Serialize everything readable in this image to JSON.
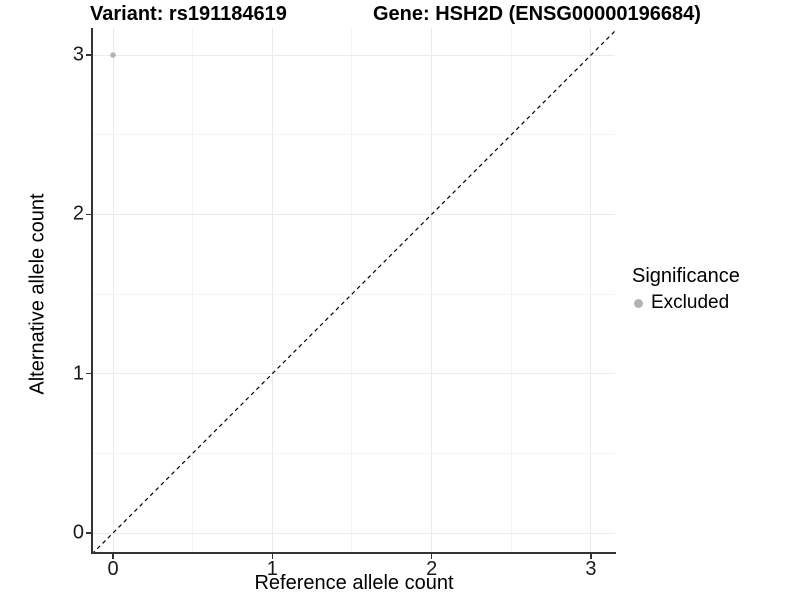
{
  "header": {
    "variant_title": "Variant: rs191184619",
    "gene_title": "Gene: HSH2D (ENSG00000196684)"
  },
  "chart_data": {
    "type": "scatter",
    "title": "Variant: rs191184619    Gene: HSH2D (ENSG00000196684)",
    "title_parts": {
      "variant": "Variant: rs191184619",
      "gene": "Gene: HSH2D (ENSG00000196684)"
    },
    "xlabel": "Reference allele count",
    "ylabel": "Alternative allele count",
    "xlim": [
      -0.13,
      3.15
    ],
    "ylim": [
      -0.13,
      3.15
    ],
    "x_ticks": [
      0,
      1,
      2,
      3
    ],
    "y_ticks": [
      0,
      1,
      2,
      3
    ],
    "grid": {
      "major": true,
      "minor": true,
      "major_color": "#ebebeb",
      "minor_color": "#f4f4f4"
    },
    "series": [
      {
        "name": "Excluded",
        "color": "#b3b3b3",
        "points": [
          {
            "x": 0,
            "y": 3
          }
        ]
      }
    ],
    "reference_line": {
      "kind": "identity",
      "from": [
        0,
        0
      ],
      "to": [
        3,
        3
      ],
      "style": "dashed",
      "color": "#000000"
    },
    "legend": {
      "title": "Significance",
      "position": "right",
      "entries": [
        {
          "label": "Excluded",
          "color": "#b3b3b3"
        }
      ]
    }
  }
}
